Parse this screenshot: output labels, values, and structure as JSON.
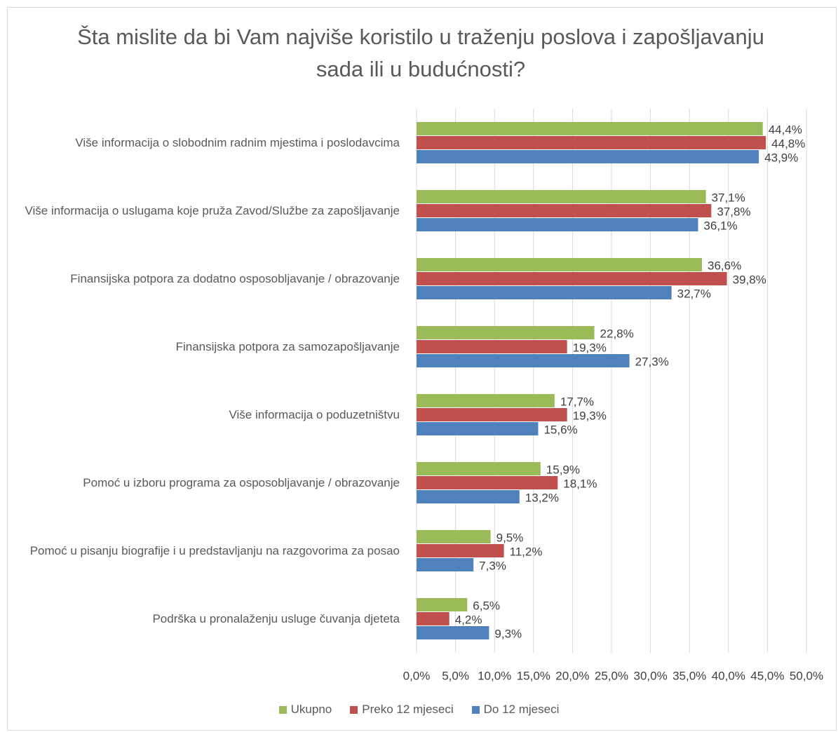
{
  "chart_data": {
    "type": "bar",
    "orientation": "horizontal",
    "title": "Šta mislite da bi Vam najviše koristilo u traženju poslova i zapošljavanju sada ili u budućnosti?",
    "categories": [
      "Više informacija o slobodnim radnim mjestima i poslodavcima",
      "Više informacija o uslugama koje pruža Zavod/Službe za zapošljavanje",
      "Finansijska potpora za dodatno osposobljavanje / obrazovanje",
      "Finansijska potpora za samozapošljavanje",
      "Više informacija o poduzetništvu",
      "Pomoć u izboru programa za osposobljavanje / obrazovanje",
      "Pomoć u pisanju biografije i u predstavljanju na razgovorima za posao",
      "Podrška u pronalaženju usluge čuvanja djeteta"
    ],
    "series": [
      {
        "name": "Ukupno",
        "color": "#9bbb59",
        "values": [
          44.4,
          37.1,
          36.6,
          22.8,
          17.7,
          15.9,
          9.5,
          6.5
        ],
        "value_labels": [
          "44,4%",
          "37,1%",
          "36,6%",
          "22,8%",
          "17,7%",
          "15,9%",
          "9,5%",
          "6,5%"
        ]
      },
      {
        "name": "Preko 12 mjeseci",
        "color": "#c0504d",
        "values": [
          44.8,
          37.8,
          39.8,
          19.3,
          19.3,
          18.1,
          11.2,
          4.2
        ],
        "value_labels": [
          "44,8%",
          "37,8%",
          "39,8%",
          "19,3%",
          "19,3%",
          "18,1%",
          "11,2%",
          "4,2%"
        ]
      },
      {
        "name": "Do 12 mjeseci",
        "color": "#4f81bd",
        "values": [
          43.9,
          36.1,
          32.7,
          27.3,
          15.6,
          13.2,
          7.3,
          9.3
        ],
        "value_labels": [
          "43,9%",
          "36,1%",
          "32,7%",
          "27,3%",
          "15,6%",
          "13,2%",
          "7,3%",
          "9,3%"
        ]
      }
    ],
    "xlim": [
      0,
      50
    ],
    "xticks": [
      {
        "value": 0,
        "label": "0,0%"
      },
      {
        "value": 5,
        "label": "5,0%"
      },
      {
        "value": 10,
        "label": "10,0%"
      },
      {
        "value": 15,
        "label": "15,0%"
      },
      {
        "value": 20,
        "label": "20,0%"
      },
      {
        "value": 25,
        "label": "25,0%"
      },
      {
        "value": 30,
        "label": "30,0%"
      },
      {
        "value": 35,
        "label": "35,0%"
      },
      {
        "value": 40,
        "label": "40,0%"
      },
      {
        "value": 45,
        "label": "45,0%"
      },
      {
        "value": 50,
        "label": "50,0%"
      }
    ],
    "grid": true,
    "legend": "bottom"
  }
}
